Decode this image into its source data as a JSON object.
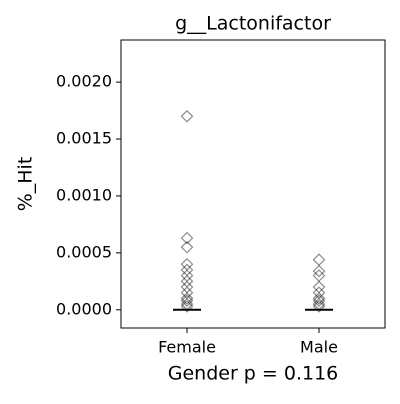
{
  "chart_data": {
    "type": "box",
    "title": "g__Lactonifactor",
    "ylabel": "%_Hit",
    "xlabel": "Gender p = 0.116",
    "categories": [
      "Female",
      "Male"
    ],
    "boxes": [
      {
        "whislo": 0,
        "q1": 0,
        "median": 0,
        "q3": 0,
        "whishi": 0,
        "fliers": [
          0.0017,
          0.00063,
          0.00055,
          0.0004,
          0.00035,
          0.0003,
          0.00025,
          0.0002,
          0.00015,
          0.0001,
          8e-05,
          5e-05,
          3e-05
        ]
      },
      {
        "whislo": 0,
        "q1": 0,
        "median": 0,
        "q3": 0,
        "whishi": 0,
        "fliers": [
          0.00044,
          0.00034,
          0.0003,
          0.0002,
          0.00015,
          0.0001,
          8e-05,
          5e-05,
          3e-05
        ]
      }
    ],
    "color": "#000000",
    "ylim": [
      -0.00016,
      0.00237
    ],
    "yticks": [
      {
        "value": 0,
        "label": "0.0000"
      },
      {
        "value": 0.0005,
        "label": "0.0005"
      },
      {
        "value": 0.001,
        "label": "0.0010"
      },
      {
        "value": 0.0015,
        "label": "0.0015"
      },
      {
        "value": 0.002,
        "label": "0.0020"
      }
    ],
    "grid": false
  }
}
